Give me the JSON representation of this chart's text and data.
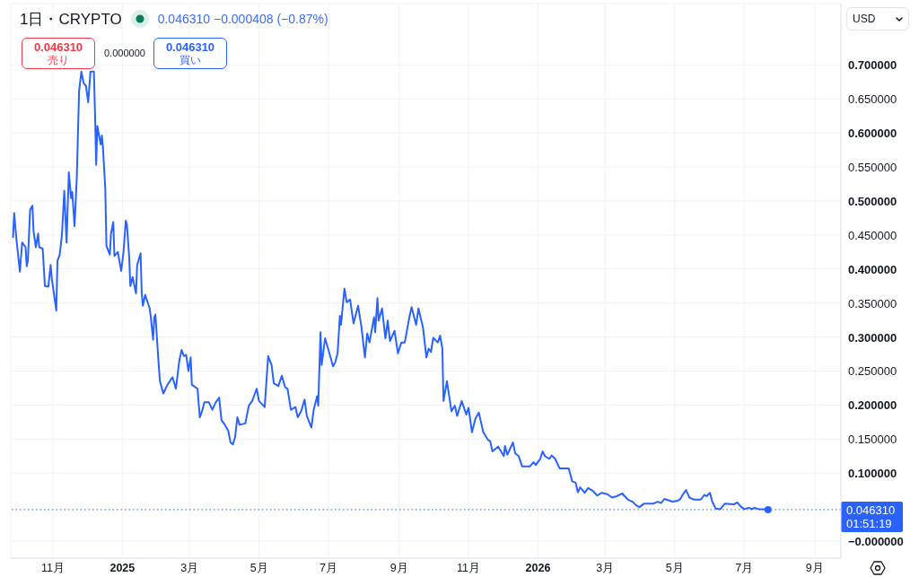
{
  "chart_data": {
    "type": "line",
    "title": "1日・CRYPTO",
    "subtitle": "0.046310 −0.000408 (−0.87%)",
    "series": [
      {
        "color": "#2962ff",
        "x": [
          "2024-09-27",
          "2024-09-28",
          "2024-09-30",
          "2024-10-03",
          "2024-10-05",
          "2024-10-08",
          "2024-10-09",
          "2024-10-10",
          "2024-10-12",
          "2024-10-14",
          "2024-10-15",
          "2024-10-17",
          "2024-10-19",
          "2024-10-20",
          "2024-10-23",
          "2024-10-25",
          "2024-10-28",
          "2024-10-30",
          "2024-10-31",
          "2024-11-04",
          "2024-11-05",
          "2024-11-07",
          "2024-11-09",
          "2024-11-11",
          "2024-11-13",
          "2024-11-15",
          "2024-11-17",
          "2024-11-18",
          "2024-11-20",
          "2024-11-22",
          "2024-11-24",
          "2024-11-26",
          "2024-11-28",
          "2024-11-30",
          "2024-12-02",
          "2024-12-04",
          "2024-12-07",
          "2024-12-08",
          "2024-12-09",
          "2024-12-10",
          "2024-12-13",
          "2024-12-14",
          "2024-12-15",
          "2024-12-17",
          "2024-12-18",
          "2024-12-21",
          "2024-12-22",
          "2024-12-24",
          "2024-12-25",
          "2024-12-28",
          "2024-12-31",
          "2025-01-02",
          "2025-01-04",
          "2025-01-05",
          "2025-01-07",
          "2025-01-08",
          "2025-01-10",
          "2025-01-13",
          "2025-01-14",
          "2025-01-17",
          "2025-01-18",
          "2025-01-19",
          "2025-01-21",
          "2025-01-25",
          "2025-01-26",
          "2025-01-28",
          "2025-01-29",
          "2025-01-30",
          "2025-02-02",
          "2025-02-03",
          "2025-02-06",
          "2025-02-09",
          "2025-02-14",
          "2025-02-17",
          "2025-02-20",
          "2025-02-22",
          "2025-02-24",
          "2025-02-26",
          "2025-02-28",
          "2025-03-02",
          "2025-03-03",
          "2025-03-08",
          "2025-03-10",
          "2025-03-12",
          "2025-03-14",
          "2025-03-18",
          "2025-03-21",
          "2025-03-24",
          "2025-03-27",
          "2025-03-29",
          "2025-04-01",
          "2025-04-04",
          "2025-04-06",
          "2025-04-08",
          "2025-04-10",
          "2025-04-12",
          "2025-04-14",
          "2025-04-19",
          "2025-04-22",
          "2025-04-25",
          "2025-04-27",
          "2025-04-29",
          "2025-05-01",
          "2025-05-06",
          "2025-05-09",
          "2025-05-12",
          "2025-05-14",
          "2025-05-18",
          "2025-05-21",
          "2025-05-24",
          "2025-05-26",
          "2025-05-29",
          "2025-06-02",
          "2025-06-04",
          "2025-06-07",
          "2025-06-10",
          "2025-06-12",
          "2025-06-16",
          "2025-06-18",
          "2025-06-21",
          "2025-06-22",
          "2025-06-24",
          "2025-06-25",
          "2025-06-28",
          "2025-07-01",
          "2025-07-05",
          "2025-07-07",
          "2025-07-09",
          "2025-07-11",
          "2025-07-12",
          "2025-07-15",
          "2025-07-17",
          "2025-07-20",
          "2025-07-23",
          "2025-07-25",
          "2025-07-27",
          "2025-07-30",
          "2025-08-02",
          "2025-08-04",
          "2025-08-06",
          "2025-08-10",
          "2025-08-11",
          "2025-08-13",
          "2025-08-14",
          "2025-08-17",
          "2025-08-20",
          "2025-08-22",
          "2025-08-24",
          "2025-08-28",
          "2025-08-31",
          "2025-09-03",
          "2025-09-06",
          "2025-09-10",
          "2025-09-12",
          "2025-09-16",
          "2025-09-18",
          "2025-09-22",
          "2025-09-25",
          "2025-09-27",
          "2025-09-29",
          "2025-10-01",
          "2025-10-05",
          "2025-10-07",
          "2025-10-09",
          "2025-10-10",
          "2025-10-13",
          "2025-10-17",
          "2025-10-20",
          "2025-10-22",
          "2025-10-26",
          "2025-10-30",
          "2025-11-01",
          "2025-11-04",
          "2025-11-07",
          "2025-11-10",
          "2025-11-14",
          "2025-11-18",
          "2025-11-20",
          "2025-11-22",
          "2025-11-27",
          "2025-12-02",
          "2025-12-03",
          "2025-12-05",
          "2025-12-10",
          "2025-12-12",
          "2025-12-15",
          "2025-12-18",
          "2025-12-25",
          "2025-12-28",
          "2025-12-30",
          "2026-01-03",
          "2026-01-05",
          "2026-01-07",
          "2026-01-11",
          "2026-01-13",
          "2026-01-16",
          "2026-01-20",
          "2026-01-28",
          "2026-01-31",
          "2026-02-03",
          "2026-02-05",
          "2026-02-07",
          "2026-02-11",
          "2026-02-14",
          "2026-02-18",
          "2026-02-22",
          "2026-02-26",
          "2026-03-03",
          "2026-03-07",
          "2026-03-11",
          "2026-03-16",
          "2026-03-21",
          "2026-03-25",
          "2026-03-28",
          "2026-03-31",
          "2026-04-04",
          "2026-04-12",
          "2026-04-16",
          "2026-04-19",
          "2026-04-22",
          "2026-04-29",
          "2026-05-03",
          "2026-05-06",
          "2026-05-08",
          "2026-05-11",
          "2026-05-14",
          "2026-05-18",
          "2026-05-24",
          "2026-05-27",
          "2026-05-29",
          "2026-06-01",
          "2026-06-03",
          "2026-06-06",
          "2026-06-10",
          "2026-06-14",
          "2026-06-22",
          "2026-06-25",
          "2026-06-28",
          "2026-07-01",
          "2026-07-05",
          "2026-07-08",
          "2026-07-10",
          "2026-07-14",
          "2026-07-18",
          "2026-07-22"
        ],
        "values": [
          0.447,
          0.482,
          0.443,
          0.396,
          0.439,
          0.432,
          0.404,
          0.412,
          0.487,
          0.493,
          0.456,
          0.432,
          0.452,
          0.432,
          0.43,
          0.375,
          0.374,
          0.406,
          0.386,
          0.339,
          0.412,
          0.421,
          0.452,
          0.515,
          0.439,
          0.542,
          0.504,
          0.513,
          0.463,
          0.535,
          0.662,
          0.69,
          0.673,
          0.669,
          0.645,
          0.69,
          0.69,
          0.627,
          0.553,
          0.61,
          0.583,
          0.596,
          0.577,
          0.518,
          0.434,
          0.421,
          0.452,
          0.469,
          0.419,
          0.425,
          0.397,
          0.425,
          0.471,
          0.465,
          0.417,
          0.375,
          0.388,
          0.364,
          0.406,
          0.423,
          0.364,
          0.346,
          0.362,
          0.342,
          0.329,
          0.296,
          0.329,
          0.333,
          0.257,
          0.235,
          0.217,
          0.228,
          0.241,
          0.224,
          0.265,
          0.281,
          0.272,
          0.274,
          0.25,
          0.27,
          0.23,
          0.224,
          0.182,
          0.191,
          0.204,
          0.204,
          0.193,
          0.204,
          0.211,
          0.178,
          0.171,
          0.162,
          0.145,
          0.142,
          0.153,
          0.182,
          0.171,
          0.173,
          0.199,
          0.206,
          0.215,
          0.224,
          0.206,
          0.197,
          0.272,
          0.259,
          0.232,
          0.228,
          0.243,
          0.226,
          0.224,
          0.193,
          0.197,
          0.182,
          0.191,
          0.208,
          0.184,
          0.167,
          0.193,
          0.213,
          0.199,
          0.307,
          0.259,
          0.298,
          0.281,
          0.257,
          0.263,
          0.276,
          0.331,
          0.318,
          0.371,
          0.351,
          0.355,
          0.32,
          0.333,
          0.346,
          0.314,
          0.27,
          0.305,
          0.292,
          0.329,
          0.307,
          0.357,
          0.324,
          0.342,
          0.298,
          0.324,
          0.294,
          0.309,
          0.276,
          0.292,
          0.292,
          0.329,
          0.344,
          0.318,
          0.342,
          0.314,
          0.27,
          0.283,
          0.278,
          0.299,
          0.292,
          0.302,
          0.283,
          0.206,
          0.235,
          0.191,
          0.199,
          0.184,
          0.206,
          0.186,
          0.196,
          0.16,
          0.18,
          0.189,
          0.16,
          0.149,
          0.147,
          0.132,
          0.139,
          0.125,
          0.14,
          0.127,
          0.145,
          0.129,
          0.125,
          0.11,
          0.11,
          0.116,
          0.112,
          0.121,
          0.132,
          0.125,
          0.121,
          0.126,
          0.121,
          0.107,
          0.107,
          0.088,
          0.086,
          0.072,
          0.079,
          0.071,
          0.078,
          0.074,
          0.067,
          0.071,
          0.069,
          0.064,
          0.066,
          0.07,
          0.061,
          0.058,
          0.053,
          0.05,
          0.055,
          0.055,
          0.058,
          0.056,
          0.062,
          0.058,
          0.059,
          0.062,
          0.068,
          0.075,
          0.064,
          0.061,
          0.061,
          0.068,
          0.066,
          0.071,
          0.058,
          0.048,
          0.047,
          0.055,
          0.054,
          0.057,
          0.051,
          0.047,
          0.049,
          0.047,
          0.049,
          0.047,
          0.047,
          0.04631
        ]
      },
      {
        "type": "scatter",
        "color": "#2962ff",
        "marker": "circle",
        "x": [
          "2026-07-22"
        ],
        "values": [
          0.04631
        ]
      }
    ],
    "xlim": [
      "2024-09-25",
      "2026-09-24"
    ],
    "xticks": [
      {
        "value": "2024-11-01",
        "label": "11月"
      },
      {
        "value": "2025-01-01",
        "label": "2025"
      },
      {
        "value": "2025-03-01",
        "label": "3月"
      },
      {
        "value": "2025-05-01",
        "label": "5月"
      },
      {
        "value": "2025-07-01",
        "label": "7月"
      },
      {
        "value": "2025-09-01",
        "label": "9月"
      },
      {
        "value": "2025-11-01",
        "label": "11月"
      },
      {
        "value": "2026-01-01",
        "label": "2026"
      },
      {
        "value": "2026-03-01",
        "label": "3月"
      },
      {
        "value": "2026-05-01",
        "label": "5月"
      },
      {
        "value": "2026-07-01",
        "label": "7月"
      },
      {
        "value": "2026-09-01",
        "label": "9月"
      }
    ],
    "ylim": [
      -0.025,
      0.79
    ],
    "yticks": [
      {
        "value": 0,
        "label": "−0.000000"
      },
      {
        "value": 0.1,
        "label": "0.100000"
      },
      {
        "value": 0.15,
        "label": "0.150000"
      },
      {
        "value": 0.2,
        "label": "0.200000"
      },
      {
        "value": 0.25,
        "label": "0.250000"
      },
      {
        "value": 0.3,
        "label": "0.300000"
      },
      {
        "value": 0.35,
        "label": "0.350000"
      },
      {
        "value": 0.4,
        "label": "0.400000"
      },
      {
        "value": 0.45,
        "label": "0.450000"
      },
      {
        "value": 0.5,
        "label": "0.500000"
      },
      {
        "value": 0.55,
        "label": "0.550000"
      },
      {
        "value": 0.6,
        "label": "0.600000"
      },
      {
        "value": 0.65,
        "label": "0.650000"
      },
      {
        "value": 0.7,
        "label": "0.700000"
      }
    ],
    "grid": true,
    "ref_lines": [
      {
        "axis": "y",
        "value": 0.04631,
        "label": "0.046310",
        "color": "#2962ff",
        "line_style": "dotted"
      }
    ],
    "annotations": [
      "0.046310",
      "売り",
      "0.000000",
      "0.046310",
      "買い",
      "01:51:19",
      "USD"
    ]
  }
}
